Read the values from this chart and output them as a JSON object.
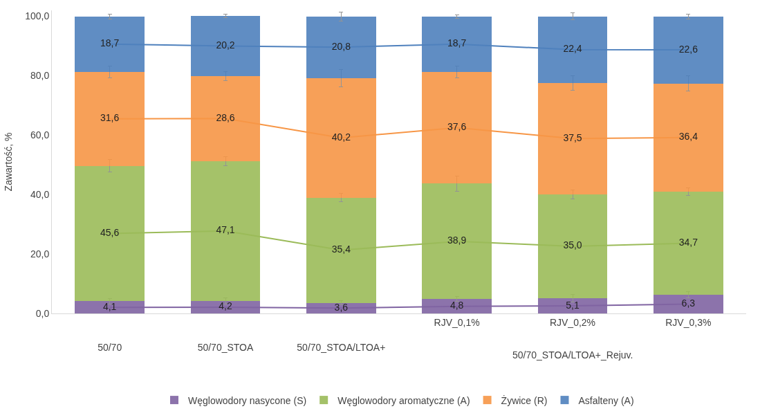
{
  "chart_data": {
    "type": "bar",
    "stacked": true,
    "legend": "bottom",
    "ylabel": "Zawartość, %",
    "categories": [
      "50/70",
      "50/70_STOA",
      "50/70_STOA/LTOA+",
      "RJV_0,1%",
      "RJV_0,2%",
      "RJV_0,3%"
    ],
    "annotations": [
      "50/70_STOA/LTOA+_Rejuv."
    ],
    "ylim": [
      0,
      102
    ],
    "yticks": [
      {
        "value": 0,
        "label": "0,0"
      },
      {
        "value": 20,
        "label": "20,0"
      },
      {
        "value": 40,
        "label": "40,0"
      },
      {
        "value": 60,
        "label": "60,0"
      },
      {
        "value": 80,
        "label": "80,0"
      },
      {
        "value": 100,
        "label": "100,0"
      }
    ],
    "series": [
      {
        "name": "Węglowodory nasycone (S)",
        "color": "#8064a2",
        "values": [
          4.1,
          4.2,
          3.6,
          4.8,
          5.1,
          6.3
        ],
        "errors": [
          1.0,
          1.0,
          0.8,
          0.8,
          1.2,
          1.0
        ],
        "value_labels": [
          "4,1",
          "4,2",
          "3,6",
          "4,8",
          "5,1",
          "6,3"
        ]
      },
      {
        "name": "Węglowodory aromatyczne (A)",
        "color": "#9bbb59",
        "values": [
          45.6,
          47.1,
          35.4,
          38.9,
          35.0,
          34.7
        ],
        "errors": [
          2.0,
          1.5,
          1.5,
          2.5,
          1.5,
          1.2
        ],
        "value_labels": [
          "45,6",
          "47,1",
          "35,4",
          "38,9",
          "35,0",
          "34,7"
        ]
      },
      {
        "name": "Żywice (R)",
        "color": "#f79646",
        "values": [
          31.6,
          28.6,
          40.2,
          37.6,
          37.5,
          36.4
        ],
        "errors": [
          2.0,
          1.5,
          3.0,
          2.0,
          2.5,
          2.5
        ],
        "value_labels": [
          "31,6",
          "28,6",
          "40,2",
          "37,6",
          "37,5",
          "36,4"
        ]
      },
      {
        "name": "Asfalteny (A)",
        "color": "#4f81bd",
        "values": [
          18.7,
          20.2,
          20.8,
          18.7,
          22.4,
          22.6
        ],
        "errors": [
          0.8,
          0.6,
          1.5,
          0.6,
          1.2,
          0.8
        ],
        "value_labels": [
          "18,7",
          "20,2",
          "20,8",
          "18,7",
          "22,4",
          "22,6"
        ]
      }
    ]
  }
}
